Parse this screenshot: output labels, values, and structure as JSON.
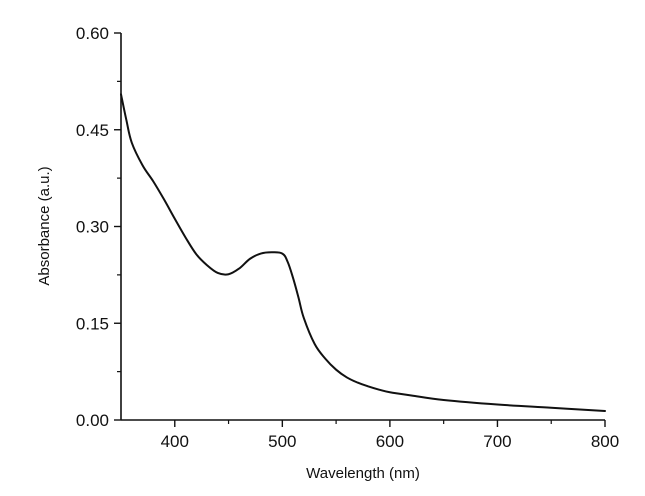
{
  "chart_data": {
    "type": "line",
    "title": "",
    "xlabel": "Wavelength (nm)",
    "ylabel": "Absorbance (a.u.)",
    "xlim": [
      350,
      800
    ],
    "ylim": [
      0.0,
      0.6
    ],
    "x_ticks": [
      {
        "value": 400,
        "label": "400"
      },
      {
        "value": 500,
        "label": "500"
      },
      {
        "value": 600,
        "label": "600"
      },
      {
        "value": 700,
        "label": "700"
      },
      {
        "value": 800,
        "label": "800"
      }
    ],
    "y_ticks": [
      {
        "value": 0.0,
        "label": "0.00"
      },
      {
        "value": 0.15,
        "label": "0.15"
      },
      {
        "value": 0.3,
        "label": "0.30"
      },
      {
        "value": 0.45,
        "label": "0.45"
      },
      {
        "value": 0.6,
        "label": "0.60"
      }
    ],
    "grid": false,
    "legend": "none",
    "line_color": "#111111",
    "series": [
      {
        "x": [
          350,
          355,
          360,
          370,
          380,
          390,
          400,
          410,
          420,
          430,
          440,
          450,
          460,
          470,
          480,
          490,
          500,
          505,
          510,
          515,
          520,
          530,
          540,
          550,
          560,
          570,
          580,
          590,
          600,
          620,
          650,
          700,
          750,
          800
        ],
        "values": [
          0.505,
          0.465,
          0.43,
          0.395,
          0.37,
          0.342,
          0.312,
          0.283,
          0.257,
          0.24,
          0.228,
          0.226,
          0.235,
          0.25,
          0.258,
          0.26,
          0.258,
          0.245,
          0.22,
          0.19,
          0.158,
          0.118,
          0.095,
          0.078,
          0.066,
          0.058,
          0.052,
          0.047,
          0.043,
          0.038,
          0.031,
          0.024,
          0.019,
          0.014
        ]
      }
    ]
  }
}
